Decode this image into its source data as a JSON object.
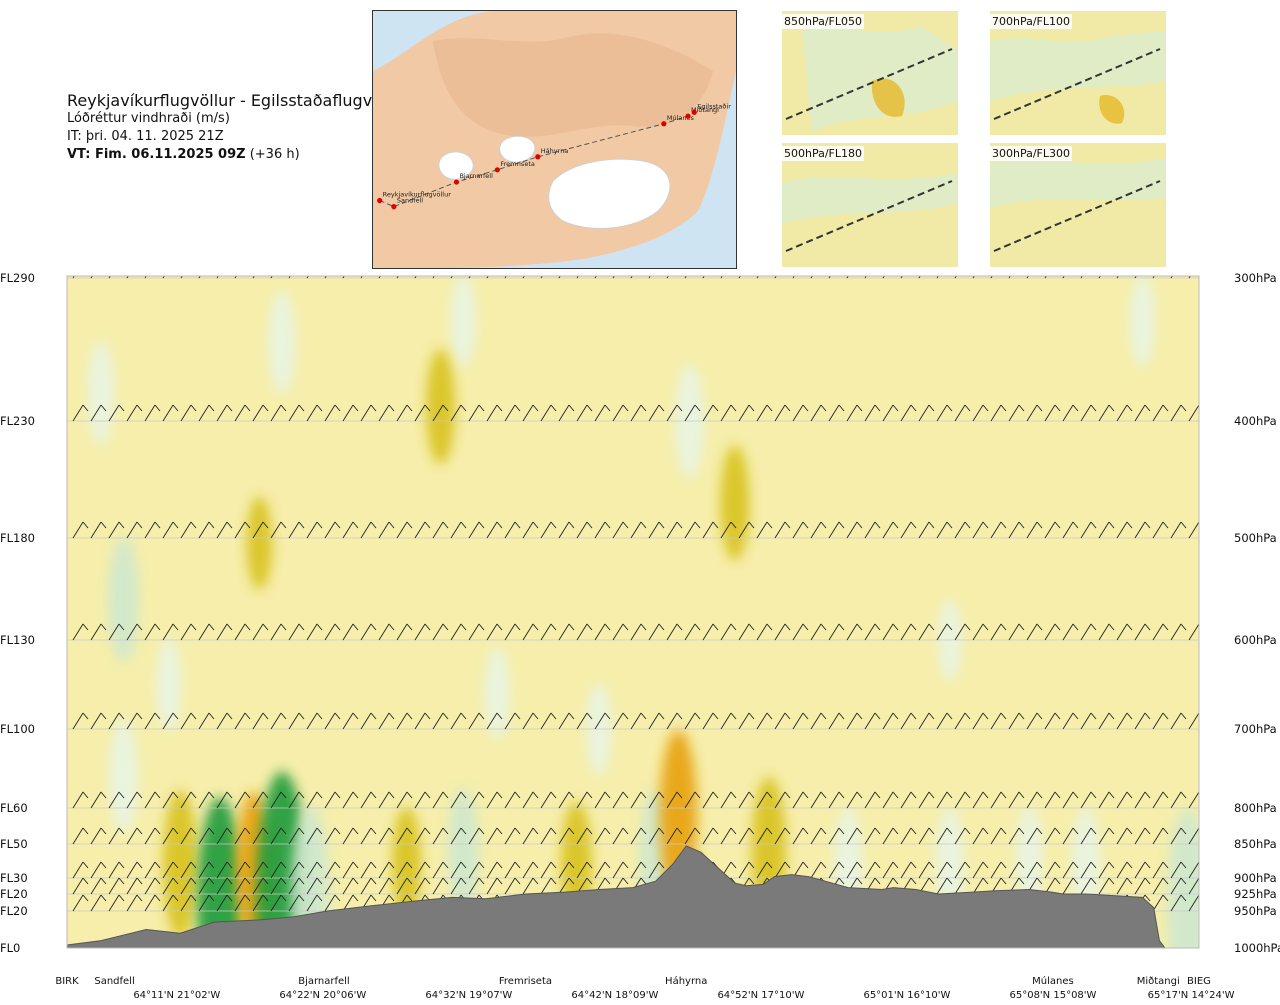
{
  "header": {
    "route": "Reykjavíkurflugvöllur - Egilsstaðaflugvöllur",
    "parameter": "Lóðréttur vindhraði (m/s)",
    "issue_time": "IT: þri. 04. 11. 2025 21Z",
    "valid_time_bold": "VT: Fim. 06.11.2025 09Z",
    "valid_time_offset": "(+36 h)"
  },
  "route_map": {
    "points": [
      {
        "name": "Reykjavíkurflugvöllur",
        "lon": -21.94,
        "lat": 64.13
      },
      {
        "name": "Sandfell",
        "lon": -21.6,
        "lat": 64.05
      },
      {
        "name": "Bjarnarfell",
        "lon": -20.1,
        "lat": 64.37
      },
      {
        "name": "Fremriseta",
        "lon": -19.12,
        "lat": 64.53
      },
      {
        "name": "Háhyrna",
        "lon": -18.15,
        "lat": 64.7
      },
      {
        "name": "Múlanes",
        "lon": -15.13,
        "lat": 65.13
      },
      {
        "name": "Miðtangi",
        "lon": -14.55,
        "lat": 65.23
      },
      {
        "name": "Egilsstaðir",
        "lon": -14.4,
        "lat": 65.28
      }
    ]
  },
  "mini_maps": [
    {
      "label": "850hPa/FL050"
    },
    {
      "label": "700hPa/FL100"
    },
    {
      "label": "500hPa/FL180"
    },
    {
      "label": "300hPa/FL300"
    }
  ],
  "colors": {
    "background": "#f6eeaa",
    "up_strong": "#d8c21d",
    "up_orange": "#e8a10f",
    "down_light": "#e8f4e4",
    "down_mid": "#cfe8cf",
    "down_strong": "#1c9a3a",
    "terrain": "#7a7a7a",
    "map_land": "#f1c9a5",
    "map_sea": "#cfe4f3",
    "glacier": "#ffffff",
    "route_dot": "#e00000"
  },
  "chart_data": {
    "type": "heatmap",
    "title": "Lóðréttur vindhraði (m/s)",
    "y_levels_left": [
      "FL290",
      "FL230",
      "FL180",
      "FL130",
      "FL100",
      "FL60",
      "FL50",
      "FL30",
      "FL20",
      "FL20",
      "FL0"
    ],
    "y_levels_right": [
      "300hPa",
      "400hPa",
      "500hPa",
      "600hPa",
      "700hPa",
      "800hPa",
      "850hPa",
      "900hPa",
      "925hPa",
      "950hPa",
      "1000hPa"
    ],
    "pressure_hpa": [
      300,
      400,
      500,
      600,
      700,
      800,
      850,
      900,
      925,
      950,
      1000
    ],
    "waypoints": [
      "BIRK",
      "Sandfell",
      "Bjarnarfell",
      "Fremriseta",
      "Háhyrna",
      "Múlanes",
      "Miðtangi",
      "BIEG"
    ],
    "waypoint_dist": [
      0.0,
      0.042,
      0.227,
      0.405,
      0.547,
      0.871,
      0.964,
      1.0
    ],
    "coords": [
      "64°11'N 21°02'W",
      "64°22'N 20°06'W",
      "64°32'N 19°07'W",
      "64°42'N 18°09'W",
      "64°52'N 17°10'W",
      "65°01'N 16°10'W",
      "65°08'N 15°08'W",
      "65°17'N 14°24'W"
    ],
    "coord_dist": [
      0.097,
      0.226,
      0.355,
      0.484,
      0.613,
      0.742,
      0.871,
      0.993
    ],
    "terrain_profile_hpa": [
      [
        0.0,
        996
      ],
      [
        0.03,
        990
      ],
      [
        0.07,
        975
      ],
      [
        0.1,
        980
      ],
      [
        0.13,
        965
      ],
      [
        0.17,
        962
      ],
      [
        0.2,
        958
      ],
      [
        0.23,
        950
      ],
      [
        0.27,
        942
      ],
      [
        0.31,
        935
      ],
      [
        0.34,
        930
      ],
      [
        0.37,
        932
      ],
      [
        0.405,
        925
      ],
      [
        0.44,
        922
      ],
      [
        0.47,
        918
      ],
      [
        0.5,
        915
      ],
      [
        0.52,
        905
      ],
      [
        0.535,
        880
      ],
      [
        0.547,
        853
      ],
      [
        0.56,
        862
      ],
      [
        0.575,
        885
      ],
      [
        0.59,
        908
      ],
      [
        0.6,
        912
      ],
      [
        0.615,
        910
      ],
      [
        0.625,
        898
      ],
      [
        0.64,
        895
      ],
      [
        0.655,
        898
      ],
      [
        0.67,
        905
      ],
      [
        0.69,
        915
      ],
      [
        0.72,
        918
      ],
      [
        0.73,
        915
      ],
      [
        0.75,
        918
      ],
      [
        0.77,
        925
      ],
      [
        0.8,
        922
      ],
      [
        0.82,
        920
      ],
      [
        0.85,
        918
      ],
      [
        0.87,
        922
      ],
      [
        0.88,
        925
      ],
      [
        0.9,
        925
      ],
      [
        0.93,
        928
      ],
      [
        0.95,
        930
      ],
      [
        0.96,
        945
      ],
      [
        0.965,
        990
      ],
      [
        0.97,
        1000
      ],
      [
        1.0,
        1000
      ]
    ],
    "vertical_velocity_cells": [
      {
        "dist": 0.03,
        "hpa": 380,
        "w": -0.4
      },
      {
        "dist": 0.05,
        "hpa": 560,
        "w": -0.6
      },
      {
        "dist": 0.05,
        "hpa": 760,
        "w": -0.5
      },
      {
        "dist": 0.19,
        "hpa": 345,
        "w": -0.4
      },
      {
        "dist": 0.17,
        "hpa": 505,
        "w": 0.3
      },
      {
        "dist": 0.09,
        "hpa": 650,
        "w": -0.3
      },
      {
        "dist": 0.35,
        "hpa": 330,
        "w": -0.3
      },
      {
        "dist": 0.33,
        "hpa": 390,
        "w": 0.5
      },
      {
        "dist": 0.38,
        "hpa": 660,
        "w": -0.3
      },
      {
        "dist": 0.55,
        "hpa": 400,
        "w": -0.5
      },
      {
        "dist": 0.59,
        "hpa": 470,
        "w": 0.5
      },
      {
        "dist": 0.47,
        "hpa": 700,
        "w": -0.3
      },
      {
        "dist": 0.78,
        "hpa": 600,
        "w": -0.2
      },
      {
        "dist": 0.95,
        "hpa": 330,
        "w": -0.3
      },
      {
        "dist": 0.1,
        "hpa": 880,
        "w": 0.8
      },
      {
        "dist": 0.135,
        "hpa": 940,
        "w": -1.4
      },
      {
        "dist": 0.165,
        "hpa": 890,
        "w": 0.9
      },
      {
        "dist": 0.19,
        "hpa": 935,
        "w": -1.8
      },
      {
        "dist": 0.215,
        "hpa": 920,
        "w": -1.0
      },
      {
        "dist": 0.3,
        "hpa": 880,
        "w": 0.5
      },
      {
        "dist": 0.35,
        "hpa": 860,
        "w": -0.6
      },
      {
        "dist": 0.45,
        "hpa": 880,
        "w": 0.6
      },
      {
        "dist": 0.52,
        "hpa": 870,
        "w": -0.7
      },
      {
        "dist": 0.54,
        "hpa": 810,
        "w": 1.0
      },
      {
        "dist": 0.62,
        "hpa": 860,
        "w": 0.8
      },
      {
        "dist": 0.69,
        "hpa": 880,
        "w": -0.5
      },
      {
        "dist": 0.78,
        "hpa": 880,
        "w": -0.5
      },
      {
        "dist": 0.85,
        "hpa": 870,
        "w": -0.4
      },
      {
        "dist": 0.9,
        "hpa": 880,
        "w": -0.5
      },
      {
        "dist": 0.99,
        "hpa": 940,
        "w": -1.2
      }
    ],
    "wind_barb_levels_hpa": [
      300,
      400,
      500,
      600,
      700,
      800,
      850,
      900,
      925,
      950
    ],
    "grid": true
  }
}
